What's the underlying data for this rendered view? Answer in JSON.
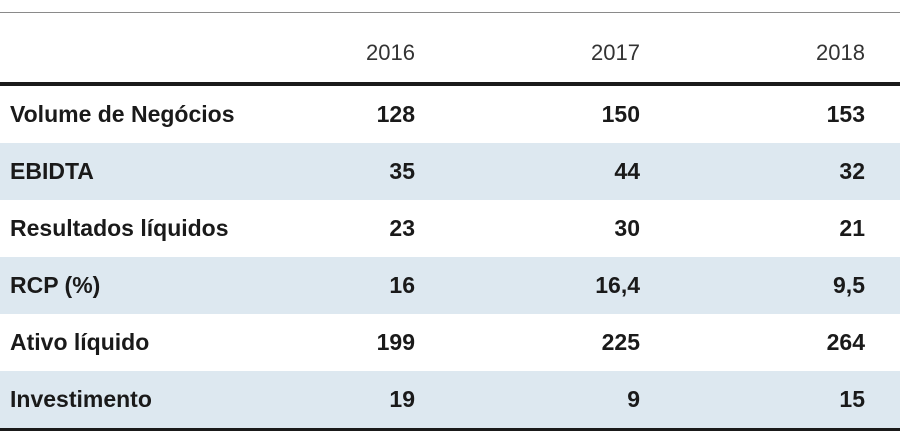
{
  "chart_data": {
    "type": "table",
    "columns": [
      "",
      "2016",
      "2017",
      "2018"
    ],
    "rows": [
      {
        "label": "Volume de Negócios",
        "values": [
          "128",
          "150",
          "153"
        ]
      },
      {
        "label": "EBIDTA",
        "values": [
          "35",
          "44",
          "32"
        ]
      },
      {
        "label": "Resultados líquidos",
        "values": [
          "23",
          "30",
          "21"
        ]
      },
      {
        "label": "RCP (%)",
        "values": [
          "16",
          "16,4",
          "9,5"
        ]
      },
      {
        "label": "Ativo líquido",
        "values": [
          "199",
          "225",
          "264"
        ]
      },
      {
        "label": "Investimento",
        "values": [
          "19",
          "9",
          "15"
        ]
      }
    ],
    "row_shading_color": "#dde8f0",
    "rule_color": "#1a1a1a"
  }
}
